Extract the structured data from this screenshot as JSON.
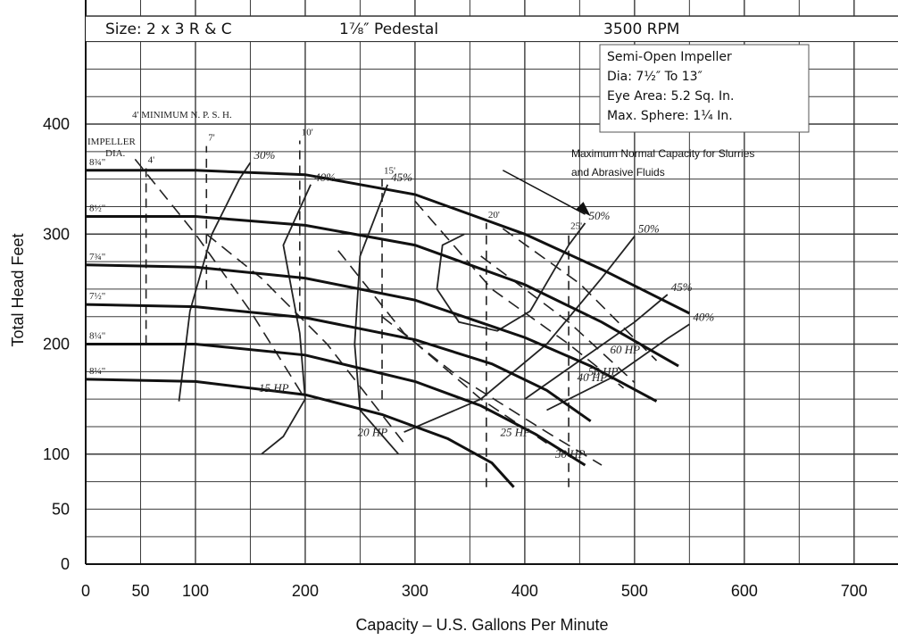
{
  "chart_data": {
    "type": "line",
    "header": {
      "size": "Size: 2 x 3 R & C",
      "pedestal": "1⅞″ Pedestal",
      "rpm": "3500 RPM"
    },
    "info_box": {
      "impeller": "Semi-Open Impeller",
      "dia": "Dia: 7½″ To 13″",
      "eye_area": "Eye Area:  5.2 Sq. In.",
      "max_sphere": "Max. Sphere: 1¼ In."
    },
    "xlabel": "Capacity – U.S. Gallons Per Minute",
    "ylabel": "Total Head Feet",
    "x_ticks": [
      0,
      50,
      100,
      200,
      300,
      400,
      500,
      600,
      700
    ],
    "y_ticks": [
      0,
      50,
      100,
      200,
      300,
      400
    ],
    "xlim": [
      0,
      740
    ],
    "ylim": [
      0,
      400
    ],
    "grid": true,
    "capacity_note": {
      "line1": "Maximum Normal Capacity for Slurries",
      "line2": "and Abrasive Fluids"
    },
    "npsh_title": "4' MINIMUM  N. P. S. H.",
    "impeller_label": [
      "IMPELLER",
      "DIA."
    ],
    "impeller_curves": [
      {
        "name": "8¾\"",
        "points": [
          [
            0,
            358
          ],
          [
            100,
            358
          ],
          [
            200,
            354
          ],
          [
            300,
            336
          ],
          [
            400,
            300
          ],
          [
            470,
            268
          ],
          [
            550,
            228
          ]
        ]
      },
      {
        "name": "8½\"",
        "points": [
          [
            0,
            316
          ],
          [
            100,
            316
          ],
          [
            200,
            308
          ],
          [
            300,
            290
          ],
          [
            400,
            254
          ],
          [
            470,
            220
          ],
          [
            540,
            180
          ]
        ]
      },
      {
        "name": "7¾\"",
        "points": [
          [
            0,
            272
          ],
          [
            100,
            270
          ],
          [
            200,
            260
          ],
          [
            300,
            240
          ],
          [
            400,
            206
          ],
          [
            460,
            180
          ],
          [
            520,
            148
          ]
        ]
      },
      {
        "name": "7½\"",
        "points": [
          [
            0,
            236
          ],
          [
            100,
            234
          ],
          [
            200,
            224
          ],
          [
            300,
            204
          ],
          [
            370,
            182
          ],
          [
            420,
            158
          ],
          [
            460,
            130
          ]
        ]
      },
      {
        "name": "8¼\"",
        "points": [
          [
            0,
            200
          ],
          [
            100,
            200
          ],
          [
            200,
            190
          ],
          [
            300,
            166
          ],
          [
            360,
            144
          ],
          [
            410,
            118
          ],
          [
            455,
            90
          ]
        ]
      },
      {
        "name": "8¼\"",
        "points": [
          [
            0,
            168
          ],
          [
            100,
            166
          ],
          [
            200,
            154
          ],
          [
            270,
            136
          ],
          [
            330,
            114
          ],
          [
            370,
            92
          ],
          [
            390,
            70
          ]
        ]
      }
    ],
    "efficiency_curves": [
      {
        "name": "30%",
        "points": [
          [
            85,
            148
          ],
          [
            95,
            230
          ],
          [
            115,
            300
          ],
          [
            140,
            350
          ],
          [
            150,
            365
          ]
        ]
      },
      {
        "name": "40%",
        "points": [
          [
            160,
            100
          ],
          [
            180,
            116
          ],
          [
            200,
            150
          ],
          [
            195,
            210
          ],
          [
            180,
            290
          ],
          [
            205,
            345
          ]
        ]
      },
      {
        "name": "45%",
        "points": [
          [
            285,
            100
          ],
          [
            250,
            140
          ],
          [
            245,
            200
          ],
          [
            250,
            280
          ],
          [
            275,
            345
          ]
        ]
      },
      {
        "name": "50%",
        "points": [
          [
            345,
            300
          ],
          [
            325,
            290
          ],
          [
            320,
            250
          ],
          [
            340,
            220
          ],
          [
            375,
            212
          ],
          [
            405,
            230
          ],
          [
            440,
            290
          ],
          [
            455,
            310
          ]
        ]
      },
      {
        "name": "50%",
        "points": [
          [
            290,
            120
          ],
          [
            360,
            150
          ],
          [
            420,
            200
          ],
          [
            470,
            260
          ],
          [
            500,
            298
          ]
        ]
      },
      {
        "name": "45%",
        "points": [
          [
            400,
            150
          ],
          [
            450,
            185
          ],
          [
            500,
            220
          ],
          [
            530,
            245
          ]
        ]
      },
      {
        "name": "40%",
        "points": [
          [
            420,
            140
          ],
          [
            480,
            170
          ],
          [
            530,
            205
          ],
          [
            550,
            218
          ]
        ]
      }
    ],
    "hp_lines": [
      {
        "name": "15 HP",
        "points": [
          [
            45,
            368
          ],
          [
            100,
            300
          ],
          [
            150,
            230
          ],
          [
            200,
            150
          ]
        ]
      },
      {
        "name": "20 HP",
        "points": [
          [
            110,
            300
          ],
          [
            160,
            260
          ],
          [
            220,
            200
          ],
          [
            290,
            110
          ]
        ]
      },
      {
        "name": "25 HP",
        "points": [
          [
            230,
            285
          ],
          [
            290,
            210
          ],
          [
            360,
            150
          ],
          [
            420,
            110
          ]
        ]
      },
      {
        "name": "30 HP",
        "points": [
          [
            270,
            225
          ],
          [
            340,
            170
          ],
          [
            420,
            120
          ],
          [
            470,
            90
          ]
        ]
      },
      {
        "name": "40 HP",
        "points": [
          [
            300,
            330
          ],
          [
            370,
            250
          ],
          [
            440,
            200
          ],
          [
            490,
            160
          ]
        ]
      },
      {
        "name": "50 HP",
        "points": [
          [
            360,
            280
          ],
          [
            440,
            220
          ],
          [
            500,
            165
          ]
        ]
      },
      {
        "name": "60 HP",
        "points": [
          [
            380,
            305
          ],
          [
            450,
            255
          ],
          [
            520,
            185
          ]
        ]
      }
    ],
    "npsh_lines": [
      {
        "name": "4'",
        "x": 55,
        "y_range": [
          200,
          360
        ]
      },
      {
        "name": "7'",
        "x": 110,
        "y_range": [
          250,
          380
        ]
      },
      {
        "name": "10'",
        "x": 195,
        "y_range": [
          230,
          385
        ]
      },
      {
        "name": "15'",
        "x": 270,
        "y_range": [
          150,
          350
        ]
      },
      {
        "name": "20'",
        "x": 365,
        "y_range": [
          70,
          310
        ]
      },
      {
        "name": "25'",
        "x": 440,
        "y_range": [
          70,
          300
        ]
      }
    ]
  }
}
